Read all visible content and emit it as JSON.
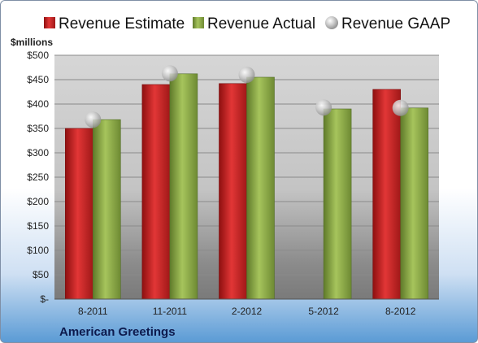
{
  "chart_data": {
    "type": "bar",
    "title": "",
    "subtitle": "",
    "unit_label": "$millions",
    "caption": "American Greetings",
    "categories": [
      "8-2011",
      "11-2011",
      "2-2012",
      "5-2012",
      "8-2012"
    ],
    "y_ticks": [
      "$-",
      "$50",
      "$100",
      "$150",
      "$200",
      "$250",
      "$300",
      "$350",
      "$400",
      "$450",
      "$500"
    ],
    "ylim": [
      0,
      500
    ],
    "grid": true,
    "legend_position": "top",
    "series": [
      {
        "name": "Revenue Estimate",
        "mark": "bar",
        "color": "#d42a2a",
        "values": [
          350,
          440,
          442,
          null,
          430
        ]
      },
      {
        "name": "Revenue Actual",
        "mark": "bar",
        "color": "#8fb04a",
        "values": [
          368,
          462,
          455,
          390,
          392
        ]
      },
      {
        "name": "Revenue GAAP",
        "mark": "point",
        "color": "#bfbfbf",
        "values": [
          368,
          463,
          460,
          393,
          392
        ]
      }
    ]
  }
}
